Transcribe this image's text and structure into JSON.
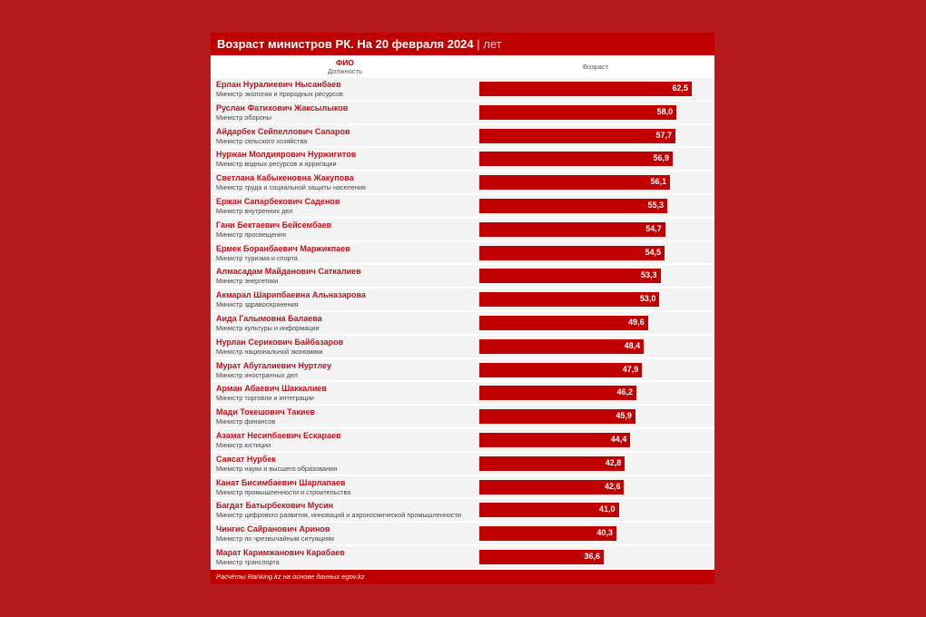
{
  "chart_data": {
    "type": "bar",
    "title": "Возраст министров РК. На 20 февраля 2024",
    "unit": "лет",
    "header": {
      "fio": "ФИО",
      "position": "Должность",
      "age": "Возраст"
    },
    "xlim": [
      0,
      62.5
    ],
    "rows": [
      {
        "name": "Ерлан Нуралиевич Нысанбаев",
        "position": "Министр экологии и природных ресурсов",
        "value": 62.5,
        "label": "62,5"
      },
      {
        "name": "Руслан Фатихович Жаксылыков",
        "position": "Министр обороны",
        "value": 58.0,
        "label": "58,0"
      },
      {
        "name": "Айдарбек Сейпеллович Сапаров",
        "position": "Министр сельского хозяйства",
        "value": 57.7,
        "label": "57,7"
      },
      {
        "name": "Нуржан Молдиярович Нуржигитов",
        "position": "Министр водных ресурсов и ирригации",
        "value": 56.9,
        "label": "56,9"
      },
      {
        "name": "Светлана Кабыкеновна Жакупова",
        "position": "Министр труда и социальной защиты населения",
        "value": 56.1,
        "label": "56,1"
      },
      {
        "name": "Ержан Сапарбекович Саденов",
        "position": "Министр внутренних дел",
        "value": 55.3,
        "label": "55,3"
      },
      {
        "name": "Гани Бектаевич Бейсембаев",
        "position": "Министр просвещения",
        "value": 54.7,
        "label": "54,7"
      },
      {
        "name": "Ермек Боранбаевич Маржикпаев",
        "position": "Министр туризма и спорта",
        "value": 54.5,
        "label": "54,5"
      },
      {
        "name": "Алмасадам Майданович Саткалиев",
        "position": "Министр энергетики",
        "value": 53.3,
        "label": "53,3"
      },
      {
        "name": "Акмарал Шарипбаевна Альназарова",
        "position": "Министр здравоохранения",
        "value": 53.0,
        "label": "53,0"
      },
      {
        "name": "Аида Галымовна Балаева",
        "position": "Министр культуры и информации",
        "value": 49.6,
        "label": "49,6"
      },
      {
        "name": "Нурлан Серикович Байбазаров",
        "position": "Министр национальной экономики",
        "value": 48.4,
        "label": "48,4"
      },
      {
        "name": "Мурат Абугалиевич Нуртлеу",
        "position": "Министр иностранных дел",
        "value": 47.9,
        "label": "47,9"
      },
      {
        "name": "Арман Абаевич Шаккалиев",
        "position": "Министр торговли и интеграции",
        "value": 46.2,
        "label": "46,2"
      },
      {
        "name": "Мади Токешович Такиев",
        "position": "Министр финансов",
        "value": 45.9,
        "label": "45,9"
      },
      {
        "name": "Азамат Несипбаевич Ескараев",
        "position": "Министр юстиции",
        "value": 44.4,
        "label": "44,4"
      },
      {
        "name": "Саясат Нурбек",
        "position": "Министр науки и высшего образования",
        "value": 42.8,
        "label": "42,8"
      },
      {
        "name": "Канат Бисимбаевич Шарлапаев",
        "position": "Министр промышленности и строительства",
        "value": 42.6,
        "label": "42,6"
      },
      {
        "name": "Багдат Батырбекович Мусин",
        "position": "Министр цифрового развития, инноваций и аэрокосмической промышленности",
        "value": 41.0,
        "label": "41,0"
      },
      {
        "name": "Чингис Сайранович Аринов",
        "position": "Министр по чрезвычайным ситуациям",
        "value": 40.3,
        "label": "40,3"
      },
      {
        "name": "Марат Каримжанович Карабаев",
        "position": "Министр транспорта",
        "value": 36.6,
        "label": "36,6"
      }
    ],
    "source": "Расчёты Ranking.kz на основе данных egov.kz",
    "bar_color": "#c00000"
  }
}
